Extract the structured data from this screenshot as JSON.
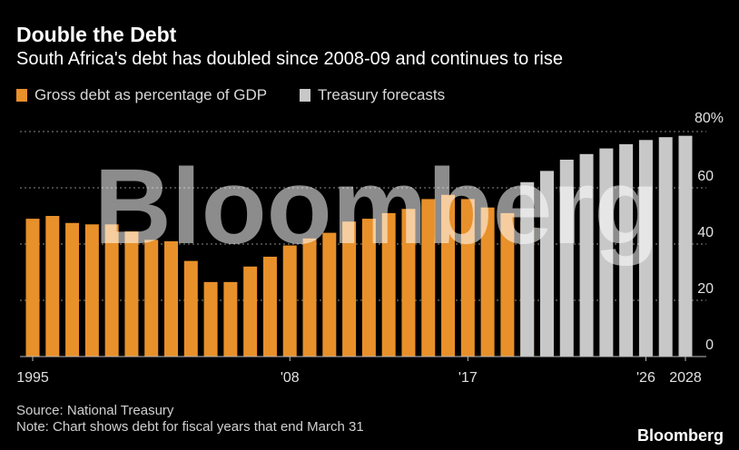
{
  "header": {
    "title": "Double the Debt",
    "subtitle": "South Africa's debt has doubled since 2008-09 and continues to rise"
  },
  "footer": {
    "source": "Source: National Treasury",
    "note": "Note: Chart shows debt for fiscal years that end March 31",
    "brand": "Bloomberg"
  },
  "watermark": "Bloomberg",
  "colors": {
    "actual": "#e8902a",
    "forecast": "#c8c8c8",
    "background": "#000000"
  },
  "chart_data": {
    "type": "bar",
    "title": "Double the Debt",
    "subtitle": "South Africa's debt has doubled since 2008-09 and continues to rise",
    "y_unit_label": "80%",
    "ylim": [
      0,
      80
    ],
    "y_ticks": [
      0,
      20,
      40,
      60
    ],
    "x_tick_labels": [
      {
        "year": 1995,
        "label": "1995"
      },
      {
        "year": 2008,
        "label": "'08"
      },
      {
        "year": 2017,
        "label": "'17"
      },
      {
        "year": 2026,
        "label": "'26"
      },
      {
        "year": 2028,
        "label": "2028"
      }
    ],
    "grid": true,
    "legend_position": "top-left",
    "series": [
      {
        "name": "Gross debt as percentage of GDP",
        "color": "#e8902a",
        "x": [
          1995,
          1996,
          1997,
          1998,
          1999,
          2000,
          2001,
          2002,
          2003,
          2004,
          2005,
          2006,
          2007,
          2008,
          2009,
          2010,
          2011,
          2012,
          2013,
          2014,
          2015,
          2016,
          2017,
          2018,
          2019,
          2020
        ],
        "values": [
          49,
          50,
          47.5,
          47,
          47,
          44.5,
          41.5,
          41,
          34,
          26.5,
          26.5,
          32,
          35.5,
          39.5,
          42,
          44,
          48,
          49,
          51,
          52.5,
          56,
          57.5,
          56,
          53,
          51,
          48
        ]
      },
      {
        "name": "Treasury forecasts",
        "color": "#c8c8c8",
        "x": [
          2020,
          2021,
          2022,
          2023,
          2024,
          2025,
          2026,
          2027,
          2028
        ],
        "values": [
          62,
          66,
          70,
          72,
          74,
          75.5,
          77,
          78,
          78.5
        ]
      }
    ]
  }
}
